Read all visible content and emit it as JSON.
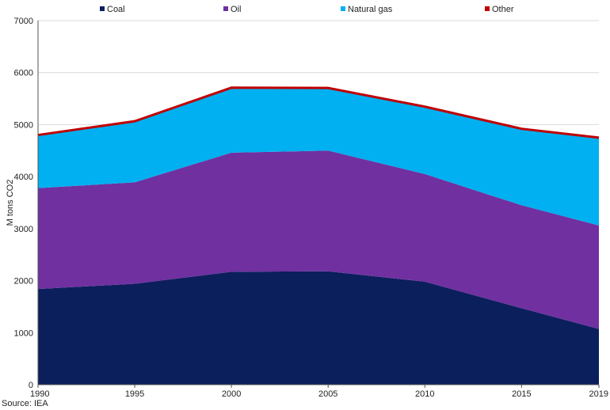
{
  "chart_data": {
    "type": "area",
    "stacked": true,
    "x": [
      1990,
      1995,
      2000,
      2005,
      2010,
      2015,
      2019
    ],
    "series": [
      {
        "name": "Coal",
        "color": "#0b1f5c",
        "values": [
          1840,
          1940,
          2170,
          2180,
          1980,
          1470,
          1070
        ]
      },
      {
        "name": "Oil",
        "color": "#7030a0",
        "values": [
          1940,
          1950,
          2290,
          2320,
          2070,
          1980,
          1990
        ]
      },
      {
        "name": "Natural gas",
        "color": "#00b0f0",
        "values": [
          1010,
          1160,
          1230,
          1190,
          1280,
          1460,
          1680
        ]
      },
      {
        "name": "Other",
        "color": "#c00000",
        "values": [
          20,
          30,
          40,
          30,
          30,
          20,
          20
        ]
      }
    ],
    "ylabel": "M tons CO2",
    "ylim": [
      0,
      7000
    ],
    "yticks": [
      "0",
      "1000",
      "2000",
      "3000",
      "4000",
      "5000",
      "6000",
      "7000"
    ],
    "xticks": [
      "1990",
      "1995",
      "2000",
      "2005",
      "2010",
      "2015",
      "2019"
    ],
    "grid": "horizontal",
    "legend_position": "top"
  },
  "source": "Source: IEA"
}
